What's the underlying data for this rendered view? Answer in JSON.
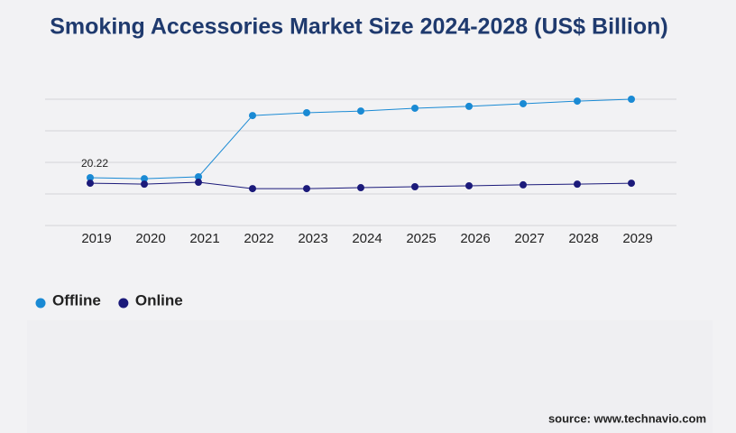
{
  "chart_data": {
    "type": "line",
    "title": "Smoking Accessories Market Size 2024-2028 (US$ Billion)",
    "categories": [
      "2019",
      "2020",
      "2021",
      "2022",
      "2023",
      "2024",
      "2025",
      "2026",
      "2027",
      "2028",
      "2029"
    ],
    "series": [
      {
        "name": "Offline",
        "color": "#1a8ad4",
        "values": [
          20.22,
          19.8,
          20.6,
          46.5,
          47.7,
          48.4,
          49.6,
          50.4,
          51.5,
          52.6,
          53.4
        ],
        "labeled_points": [
          0
        ]
      },
      {
        "name": "Online",
        "color": "#1b1a7a",
        "values": [
          17.9,
          17.5,
          18.3,
          15.6,
          15.6,
          16.0,
          16.4,
          16.8,
          17.2,
          17.5,
          17.9
        ]
      }
    ],
    "ylim": [
      0,
      53.4
    ],
    "grid": true,
    "legend": "bottom-left",
    "source": "source: www.technavio.com"
  }
}
